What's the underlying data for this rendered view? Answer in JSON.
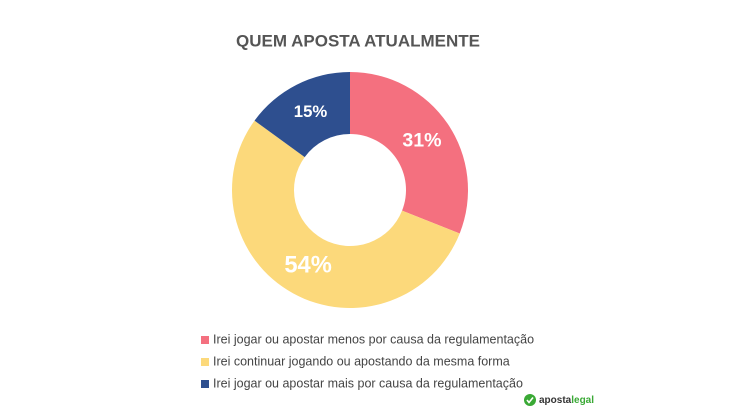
{
  "chart_data": {
    "type": "donut",
    "title": "QUEM APOSTA ATUALMENTE",
    "categories": [
      "Irei jogar ou apostar menos por causa da regulamentação",
      "Irei continuar jogando ou apostando da mesma forma",
      "Irei jogar ou apostar mais por causa da regulamentação"
    ],
    "values": [
      31,
      54,
      15
    ],
    "value_labels": [
      "31%",
      "54%",
      "15%"
    ],
    "colors": [
      "#f4707f",
      "#fcd97b",
      "#2e4f8f"
    ],
    "legend": "bottom"
  },
  "logo": {
    "part1": "aposta",
    "part2": "legal"
  }
}
